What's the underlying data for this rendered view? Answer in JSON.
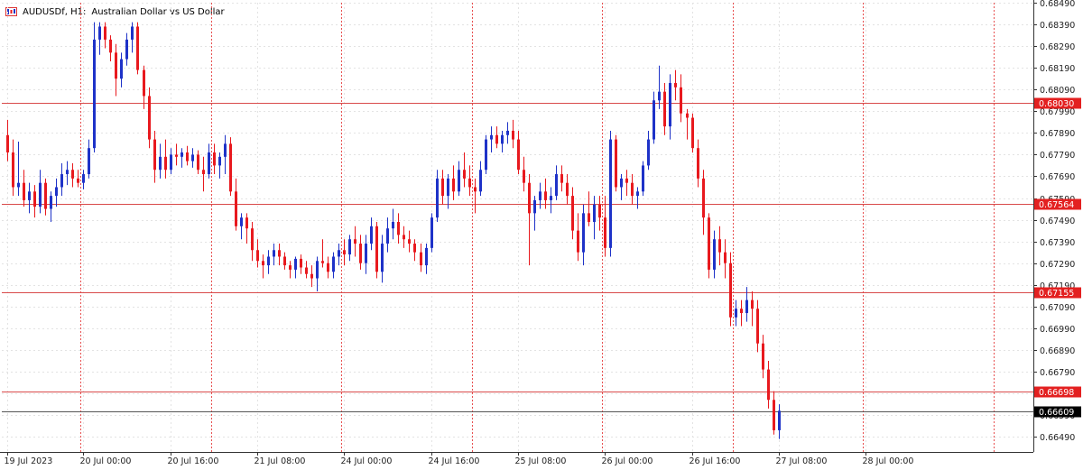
{
  "legend": {
    "symbol": "AUDUSDf, H1:",
    "description": "Australian Dollar vs US Dollar",
    "icon": "chart-bars-icon"
  },
  "colors": {
    "bull": "#1e32c8",
    "bear": "#e8191e",
    "grid": "#e3e3e3",
    "vgrid": "#e85050",
    "hline": "#d94a4a",
    "axis": "#333333",
    "current": "#000000"
  },
  "chart_data": {
    "type": "candlestick",
    "symbol": "AUDUSDf",
    "timeframe": "H1",
    "ylim": [
      0.6642,
      0.6849
    ],
    "y_ticks": [
      "0.68490",
      "0.68390",
      "0.68290",
      "0.68190",
      "0.68090",
      "0.67990",
      "0.67890",
      "0.67790",
      "0.67690",
      "0.67590",
      "0.67490",
      "0.67390",
      "0.67290",
      "0.67190",
      "0.67090",
      "0.66990",
      "0.66890",
      "0.66790",
      "0.66690",
      "0.66590",
      "0.66490"
    ],
    "x_labels": [
      {
        "label": "19 Jul 2023",
        "bar": 0
      },
      {
        "label": "20 Jul 00:00",
        "bar": 14
      },
      {
        "label": "20 Jul 16:00",
        "bar": 30
      },
      {
        "label": "21 Jul 08:00",
        "bar": 46
      },
      {
        "label": "24 Jul 00:00",
        "bar": 62
      },
      {
        "label": "24 Jul 16:00",
        "bar": 78
      },
      {
        "label": "25 Jul 08:00",
        "bar": 94
      },
      {
        "label": "26 Jul 00:00",
        "bar": 110
      },
      {
        "label": "26 Jul 16:00",
        "bar": 126
      },
      {
        "label": "27 Jul 08:00",
        "bar": 142
      },
      {
        "label": "28 Jul 00:00",
        "bar": 158
      }
    ],
    "vertical_separators": [
      14,
      38,
      62,
      86,
      110,
      134,
      158,
      182
    ],
    "levels": [
      {
        "value": 0.6803,
        "label": "0.68030"
      },
      {
        "value": 0.67564,
        "label": "0.67564"
      },
      {
        "value": 0.67155,
        "label": "0.67155"
      },
      {
        "value": 0.66698,
        "label": "0.66698"
      }
    ],
    "current_price": {
      "value": 0.66609,
      "label": "0.66609"
    },
    "candles": [
      [
        0.6788,
        0.6795,
        0.6776,
        0.678
      ],
      [
        0.678,
        0.6786,
        0.676,
        0.6764
      ],
      [
        0.6764,
        0.6785,
        0.676,
        0.6766
      ],
      [
        0.6766,
        0.6772,
        0.6755,
        0.6758
      ],
      [
        0.6758,
        0.6766,
        0.6752,
        0.6762
      ],
      [
        0.6762,
        0.6765,
        0.675,
        0.6755
      ],
      [
        0.6755,
        0.6772,
        0.6752,
        0.6766
      ],
      [
        0.6766,
        0.6768,
        0.6751,
        0.6754
      ],
      [
        0.6754,
        0.6762,
        0.6748,
        0.676
      ],
      [
        0.676,
        0.6768,
        0.6755,
        0.6764
      ],
      [
        0.6764,
        0.6775,
        0.676,
        0.677
      ],
      [
        0.677,
        0.6776,
        0.6765,
        0.6772
      ],
      [
        0.6772,
        0.6775,
        0.6764,
        0.6768
      ],
      [
        0.6768,
        0.6772,
        0.6764,
        0.6766
      ],
      [
        0.6766,
        0.6772,
        0.6763,
        0.677
      ],
      [
        0.677,
        0.6786,
        0.6768,
        0.6782
      ],
      [
        0.6782,
        0.684,
        0.678,
        0.6832
      ],
      [
        0.6832,
        0.684,
        0.6825,
        0.6838
      ],
      [
        0.6838,
        0.684,
        0.6828,
        0.6832
      ],
      [
        0.6832,
        0.6834,
        0.6822,
        0.6826
      ],
      [
        0.6826,
        0.683,
        0.6806,
        0.6814
      ],
      [
        0.6814,
        0.6826,
        0.681,
        0.6823
      ],
      [
        0.6823,
        0.6835,
        0.682,
        0.6832
      ],
      [
        0.6832,
        0.684,
        0.6826,
        0.6838
      ],
      [
        0.6838,
        0.684,
        0.6816,
        0.6818
      ],
      [
        0.6818,
        0.682,
        0.68,
        0.6806
      ],
      [
        0.6806,
        0.681,
        0.6782,
        0.6786
      ],
      [
        0.6786,
        0.679,
        0.6766,
        0.6772
      ],
      [
        0.6772,
        0.6784,
        0.6768,
        0.6778
      ],
      [
        0.6778,
        0.6786,
        0.6768,
        0.6772
      ],
      [
        0.6772,
        0.6782,
        0.677,
        0.6779
      ],
      [
        0.6779,
        0.6784,
        0.6774,
        0.6778
      ],
      [
        0.6778,
        0.6782,
        0.6773,
        0.678
      ],
      [
        0.678,
        0.6783,
        0.6774,
        0.6776
      ],
      [
        0.6776,
        0.6782,
        0.6773,
        0.6779
      ],
      [
        0.6779,
        0.6781,
        0.677,
        0.6772
      ],
      [
        0.6772,
        0.6778,
        0.6762,
        0.677
      ],
      [
        0.677,
        0.6784,
        0.6768,
        0.678
      ],
      [
        0.678,
        0.6784,
        0.677,
        0.6774
      ],
      [
        0.6774,
        0.678,
        0.6768,
        0.6778
      ],
      [
        0.6778,
        0.6788,
        0.677,
        0.6784
      ],
      [
        0.6784,
        0.6787,
        0.676,
        0.6762
      ],
      [
        0.6762,
        0.6768,
        0.6744,
        0.6746
      ],
      [
        0.6746,
        0.6752,
        0.674,
        0.675
      ],
      [
        0.675,
        0.6752,
        0.6738,
        0.6745
      ],
      [
        0.6745,
        0.6748,
        0.673,
        0.6735
      ],
      [
        0.6735,
        0.674,
        0.6727,
        0.673
      ],
      [
        0.673,
        0.6733,
        0.6722,
        0.6728
      ],
      [
        0.6728,
        0.6735,
        0.6724,
        0.6732
      ],
      [
        0.6732,
        0.6738,
        0.6728,
        0.6735
      ],
      [
        0.6735,
        0.6738,
        0.6728,
        0.6732
      ],
      [
        0.6732,
        0.6734,
        0.6726,
        0.6728
      ],
      [
        0.6728,
        0.673,
        0.6722,
        0.6726
      ],
      [
        0.6726,
        0.6732,
        0.6722,
        0.6731
      ],
      [
        0.6731,
        0.6733,
        0.6724,
        0.6727
      ],
      [
        0.6727,
        0.673,
        0.6722,
        0.6724
      ],
      [
        0.6724,
        0.6728,
        0.6718,
        0.6722
      ],
      [
        0.6722,
        0.6732,
        0.6716,
        0.673
      ],
      [
        0.673,
        0.674,
        0.6727,
        0.6729
      ],
      [
        0.6729,
        0.6732,
        0.6722,
        0.6725
      ],
      [
        0.6725,
        0.6734,
        0.6722,
        0.6732
      ],
      [
        0.6732,
        0.6738,
        0.6728,
        0.6735
      ],
      [
        0.6735,
        0.674,
        0.6728,
        0.6733
      ],
      [
        0.6733,
        0.6742,
        0.673,
        0.674
      ],
      [
        0.674,
        0.6746,
        0.6732,
        0.6738
      ],
      [
        0.6738,
        0.6742,
        0.6726,
        0.6729
      ],
      [
        0.6729,
        0.6742,
        0.6724,
        0.6738
      ],
      [
        0.6738,
        0.675,
        0.6735,
        0.6746
      ],
      [
        0.6746,
        0.6748,
        0.6722,
        0.6725
      ],
      [
        0.6725,
        0.6742,
        0.672,
        0.6738
      ],
      [
        0.6738,
        0.675,
        0.6734,
        0.6745
      ],
      [
        0.6745,
        0.6754,
        0.674,
        0.6748
      ],
      [
        0.6748,
        0.6752,
        0.6738,
        0.6742
      ],
      [
        0.6742,
        0.6746,
        0.6736,
        0.674
      ],
      [
        0.674,
        0.6744,
        0.6734,
        0.6738
      ],
      [
        0.6738,
        0.674,
        0.673,
        0.6734
      ],
      [
        0.6734,
        0.6738,
        0.6725,
        0.6728
      ],
      [
        0.6728,
        0.6738,
        0.6724,
        0.6736
      ],
      [
        0.6736,
        0.6752,
        0.6734,
        0.675
      ],
      [
        0.675,
        0.6772,
        0.6748,
        0.6768
      ],
      [
        0.6768,
        0.6772,
        0.6756,
        0.676
      ],
      [
        0.676,
        0.677,
        0.6754,
        0.6768
      ],
      [
        0.6768,
        0.6774,
        0.6758,
        0.6762
      ],
      [
        0.6762,
        0.6776,
        0.676,
        0.6772
      ],
      [
        0.6772,
        0.678,
        0.6764,
        0.6768
      ],
      [
        0.6768,
        0.6774,
        0.676,
        0.6764
      ],
      [
        0.6764,
        0.6768,
        0.6752,
        0.6762
      ],
      [
        0.6762,
        0.6776,
        0.676,
        0.6772
      ],
      [
        0.6772,
        0.6788,
        0.677,
        0.6786
      ],
      [
        0.6786,
        0.6792,
        0.678,
        0.6788
      ],
      [
        0.6788,
        0.6792,
        0.6782,
        0.6784
      ],
      [
        0.6784,
        0.679,
        0.678,
        0.6788
      ],
      [
        0.6788,
        0.6794,
        0.6784,
        0.679
      ],
      [
        0.679,
        0.6795,
        0.6782,
        0.6786
      ],
      [
        0.6786,
        0.679,
        0.677,
        0.6772
      ],
      [
        0.6772,
        0.6778,
        0.6762,
        0.6766
      ],
      [
        0.6766,
        0.677,
        0.6728,
        0.6752
      ],
      [
        0.6752,
        0.676,
        0.6744,
        0.6758
      ],
      [
        0.6758,
        0.6766,
        0.6754,
        0.6762
      ],
      [
        0.6762,
        0.6768,
        0.6754,
        0.6758
      ],
      [
        0.6758,
        0.6764,
        0.6752,
        0.676
      ],
      [
        0.676,
        0.6774,
        0.6758,
        0.677
      ],
      [
        0.677,
        0.6774,
        0.6762,
        0.6766
      ],
      [
        0.6766,
        0.677,
        0.6756,
        0.676
      ],
      [
        0.676,
        0.6764,
        0.674,
        0.6744
      ],
      [
        0.6744,
        0.6752,
        0.673,
        0.6734
      ],
      [
        0.6734,
        0.6756,
        0.6728,
        0.6752
      ],
      [
        0.6752,
        0.6762,
        0.6746,
        0.6748
      ],
      [
        0.6748,
        0.676,
        0.674,
        0.6756
      ],
      [
        0.6756,
        0.676,
        0.6744,
        0.675
      ],
      [
        0.675,
        0.676,
        0.6732,
        0.6736
      ],
      [
        0.6736,
        0.679,
        0.6732,
        0.6786
      ],
      [
        0.6786,
        0.6788,
        0.6762,
        0.6764
      ],
      [
        0.6764,
        0.677,
        0.6758,
        0.6768
      ],
      [
        0.6768,
        0.6772,
        0.676,
        0.6766
      ],
      [
        0.6766,
        0.677,
        0.6756,
        0.676
      ],
      [
        0.676,
        0.6764,
        0.6754,
        0.6762
      ],
      [
        0.6762,
        0.6776,
        0.676,
        0.6774
      ],
      [
        0.6774,
        0.679,
        0.6772,
        0.6786
      ],
      [
        0.6786,
        0.6808,
        0.6784,
        0.6804
      ],
      [
        0.6804,
        0.682,
        0.68,
        0.6808
      ],
      [
        0.6808,
        0.6812,
        0.6788,
        0.6792
      ],
      [
        0.6792,
        0.6816,
        0.6786,
        0.6812
      ],
      [
        0.6812,
        0.6818,
        0.6804,
        0.681
      ],
      [
        0.681,
        0.6816,
        0.6794,
        0.6798
      ],
      [
        0.6798,
        0.68,
        0.6786,
        0.6796
      ],
      [
        0.6796,
        0.6798,
        0.678,
        0.6782
      ],
      [
        0.6782,
        0.6786,
        0.6764,
        0.6768
      ],
      [
        0.6768,
        0.6772,
        0.6742,
        0.675
      ],
      [
        0.675,
        0.6752,
        0.6722,
        0.6726
      ],
      [
        0.6726,
        0.6744,
        0.6722,
        0.674
      ],
      [
        0.674,
        0.6746,
        0.6728,
        0.6734
      ],
      [
        0.6734,
        0.674,
        0.6722,
        0.6729
      ],
      [
        0.6729,
        0.6734,
        0.67,
        0.6704
      ],
      [
        0.6704,
        0.6712,
        0.67,
        0.6708
      ],
      [
        0.6708,
        0.6712,
        0.67,
        0.6706
      ],
      [
        0.6706,
        0.6718,
        0.6702,
        0.6712
      ],
      [
        0.6712,
        0.6716,
        0.67,
        0.6708
      ],
      [
        0.6708,
        0.6712,
        0.6688,
        0.6692
      ],
      [
        0.6692,
        0.6696,
        0.6676,
        0.668
      ],
      [
        0.668,
        0.6684,
        0.6662,
        0.6666
      ],
      [
        0.6666,
        0.667,
        0.665,
        0.6652
      ],
      [
        0.6652,
        0.6664,
        0.6648,
        0.6661
      ]
    ]
  }
}
